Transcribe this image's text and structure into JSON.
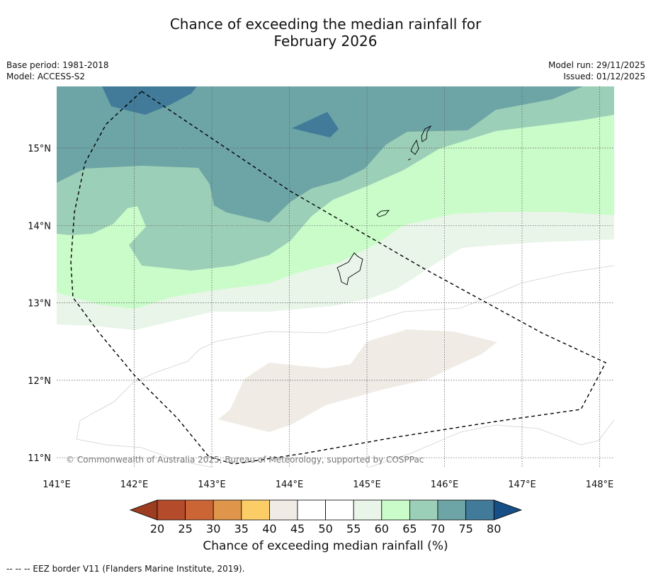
{
  "title": {
    "line1": "Chance of exceeding the median rainfall for",
    "line2": "February 2026"
  },
  "meta": {
    "base_period": "Base period: 1981-2018",
    "model": "Model: ACCESS-S2",
    "model_run": "Model run: 29/11/2025",
    "issued": "Issued: 01/12/2025"
  },
  "map": {
    "lon_labels": [
      "141°E",
      "142°E",
      "143°E",
      "144°E",
      "145°E",
      "146°E",
      "147°E",
      "148°E"
    ],
    "lat_labels": [
      "15°N",
      "14°N",
      "13°N",
      "12°N",
      "11°N"
    ],
    "copyright": "© Commonwealth of Australia 2025, Bureau of Meteorology, supported by COSPPac"
  },
  "colorbar": {
    "ticks": [
      "20",
      "25",
      "30",
      "35",
      "40",
      "45",
      "50",
      "55",
      "60",
      "65",
      "70",
      "75",
      "80"
    ],
    "colors": [
      "#b44b2a",
      "#cc6535",
      "#e0964a",
      "#fccd66",
      "#f0ebe5",
      "#ffffff",
      "#ffffff",
      "#e9f5e9",
      "#c9fcc9",
      "#9ccfb7",
      "#6da5a6",
      "#417b99"
    ],
    "under_color": "#9c3c21",
    "over_color": "#174e86",
    "label": "Chance of exceeding median rainfall (%)"
  },
  "footer": "--  --  -- EEZ border V11 (Flanders Marine Institute, 2019)."
}
